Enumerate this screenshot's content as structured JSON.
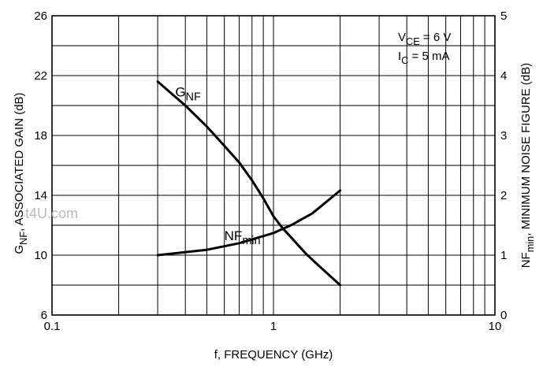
{
  "chart_data": {
    "type": "line",
    "x_scale": "log",
    "xlim": [
      0.1,
      10
    ],
    "ylim_left": [
      6,
      26
    ],
    "ylim_right": [
      0,
      5
    ],
    "x_tick_labels": [
      "0.1",
      "1",
      "10"
    ],
    "x_ticks": [
      0.1,
      1,
      10
    ],
    "left_tick_labels": [
      "6",
      "10",
      "14",
      "18",
      "22",
      "26"
    ],
    "left_ticks": [
      6,
      10,
      14,
      18,
      22,
      26
    ],
    "right_tick_labels": [
      "0",
      "1",
      "2",
      "3",
      "4",
      "5"
    ],
    "right_ticks": [
      0,
      1,
      2,
      3,
      4,
      5
    ],
    "xlabel": "f, FREQUENCY (GHz)",
    "ylabel_left": {
      "main": "G",
      "sub": "NF",
      "rest": ", ASSOCIATED GAIN (dB)"
    },
    "ylabel_right": {
      "main": "NF",
      "sub": "min",
      "rest": ", MINIMUM NOISE FIGURE (dB)"
    },
    "grid": true,
    "conditions": [
      {
        "main": "V",
        "sub": "CE",
        "rest": " = 6 V"
      },
      {
        "main": "I",
        "sub": "C",
        "rest": " = 5 mA"
      }
    ],
    "series": [
      {
        "name": {
          "main": "G",
          "sub": "NF"
        },
        "axis": "left",
        "label_at": [
          0.36,
          20.6
        ],
        "x": [
          0.3,
          0.4,
          0.5,
          0.6,
          0.7,
          0.8,
          0.9,
          1.0,
          1.1,
          1.2,
          1.4,
          1.6,
          2.0
        ],
        "y": [
          21.6,
          20.0,
          18.6,
          17.3,
          16.2,
          15.0,
          13.8,
          12.6,
          11.8,
          11.2,
          10.1,
          9.3,
          8.0
        ]
      },
      {
        "name": {
          "main": "NF",
          "sub": "min"
        },
        "axis": "right",
        "label_at": [
          0.6,
          1.25
        ],
        "x": [
          0.3,
          0.5,
          0.7,
          1.0,
          1.2,
          1.5,
          2.0
        ],
        "y": [
          1.0,
          1.09,
          1.2,
          1.37,
          1.5,
          1.7,
          2.08
        ]
      }
    ]
  },
  "watermark": "t4U.com"
}
